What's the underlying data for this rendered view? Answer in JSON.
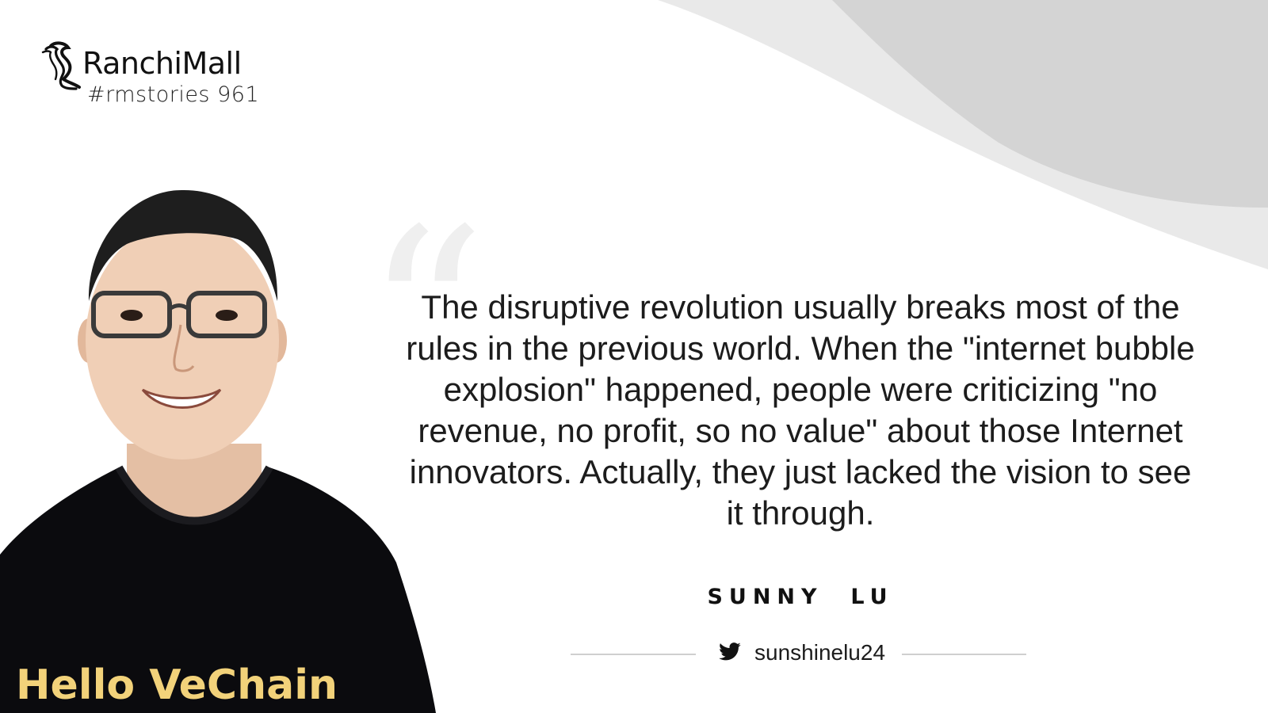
{
  "brand": {
    "name": "RanchiMall",
    "tag": "#rmstories 961",
    "logo_icon": "seahorse-logo-icon"
  },
  "quote": {
    "mark_icon": "open-quote-icon",
    "text": "The disruptive revolution usually breaks most of the rules in the previous world. When the \"internet bubble explosion\" happened, people were criticizing \"no revenue, no profit, so no value\" about those Internet innovators. Actually, they just lacked the vision to see it through."
  },
  "author": {
    "name": "SUNNY  LU",
    "twitter_icon": "twitter-bird-icon",
    "handle": "sunshinelu24"
  },
  "portrait": {
    "shirt_text": "Hello VeChain"
  },
  "colors": {
    "background": "#ffffff",
    "swoosh_light": "#e9e9e9",
    "swoosh_mid": "#d4d4d4",
    "quote_mark": "#efefef",
    "text": "#1c1c1c",
    "shirt": "#0b0b0e"
  }
}
